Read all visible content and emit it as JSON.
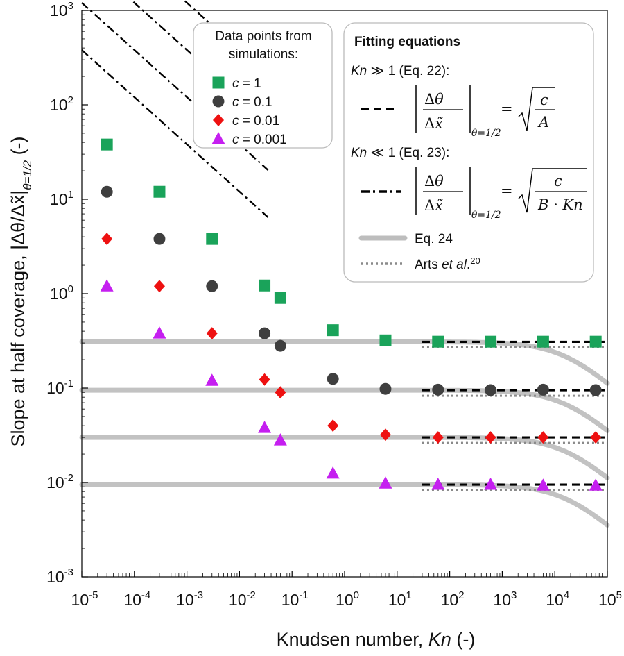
{
  "chart_data": {
    "type": "scatter",
    "xlabel": "Knudsen number, Kn (-)",
    "xlabel_prefix": "Knudsen number, ",
    "xlabel_var": "Kn",
    "xlabel_suffix": " (-)",
    "ylabel": "Slope at half coverage, |Δθ/Δx̃|θ=1/2 (-)",
    "ylabel_prefix": "Slope at half coverage, |Δθ/Δx̃|",
    "ylabel_sub": "θ=1/2",
    "ylabel_suffix": " (-)",
    "x_scale": "log",
    "y_scale": "log",
    "xlim": [
      1e-05,
      100000.0
    ],
    "ylim": [
      0.001,
      1000.0
    ],
    "x_ticks": [
      1e-05,
      0.0001,
      0.001,
      0.01,
      0.1,
      1.0,
      10.0,
      100.0,
      1000.0,
      10000.0,
      100000.0
    ],
    "x_tick_exponents": [
      "-5",
      "-4",
      "-3",
      "-2",
      "-1",
      "0",
      "1",
      "2",
      "3",
      "4",
      "5"
    ],
    "y_ticks": [
      0.001,
      0.01,
      0.1,
      1.0,
      10.0,
      100.0,
      1000.0
    ],
    "y_tick_exponents": [
      "-3",
      "-2",
      "-1",
      "0",
      "1",
      "2",
      "3"
    ],
    "grid": false,
    "series": [
      {
        "name": "c = 1",
        "c_value": "1",
        "marker": "square",
        "color": "#1aa35a",
        "x": [
          3e-05,
          0.0003,
          0.003,
          0.03,
          0.06,
          0.6,
          6,
          60,
          600,
          6000,
          60000
        ],
        "y": [
          38,
          12,
          3.8,
          1.22,
          0.9,
          0.41,
          0.32,
          0.31,
          0.31,
          0.31,
          0.31
        ],
        "A": 10.5,
        "B": 0.00069
      },
      {
        "name": "c = 0.1",
        "c_value": "0.1",
        "marker": "circle",
        "color": "#3f3f3f",
        "x": [
          3e-05,
          0.0003,
          0.003,
          0.03,
          0.06,
          0.6,
          6,
          60,
          600,
          6000,
          60000
        ],
        "y": [
          12,
          3.8,
          1.2,
          0.38,
          0.28,
          0.125,
          0.098,
          0.096,
          0.095,
          0.096,
          0.095
        ],
        "A": 11.1,
        "B": 0.00069
      },
      {
        "name": "c = 0.01",
        "c_value": "0.01",
        "marker": "diamond",
        "color": "#ee1111",
        "x": [
          3e-05,
          0.0003,
          0.003,
          0.03,
          0.06,
          0.6,
          6,
          60,
          600,
          6000,
          60000
        ],
        "y": [
          3.8,
          1.2,
          0.38,
          0.123,
          0.09,
          0.04,
          0.032,
          0.03,
          0.03,
          0.03,
          0.03
        ],
        "A": 11.1,
        "B": 0.00069
      },
      {
        "name": "c = 0.001",
        "c_value": "0.001",
        "marker": "triangle",
        "color": "#c51ff0",
        "x": [
          3e-05,
          0.0003,
          0.003,
          0.03,
          0.06,
          0.6,
          6,
          60,
          600,
          6000,
          60000
        ],
        "y": [
          1.2,
          0.38,
          0.12,
          0.038,
          0.028,
          0.0125,
          0.0098,
          0.0095,
          0.0095,
          0.0093,
          0.0093
        ],
        "A": 11.1,
        "B": 0.00069
      }
    ],
    "legend_points": {
      "title_line1": "Data points from",
      "title_line2": "simulations:",
      "c_symbol": "c",
      "eq_sign": " = ",
      "placement": "top-center"
    },
    "legend_fits": {
      "title": "Fitting equations",
      "kn_large_var": "Kn",
      "kn_large_rest": " ≫ 1 (Eq. 22):",
      "kn_small_var": "Kn",
      "kn_small_rest": " ≪ 1 (Eq. 23):",
      "eq24_label": "Eq. 24",
      "arts_prefix": "Arts ",
      "arts_italic": "et al",
      "arts_suffix": ".",
      "arts_ref": "20",
      "placement": "top-right"
    }
  }
}
